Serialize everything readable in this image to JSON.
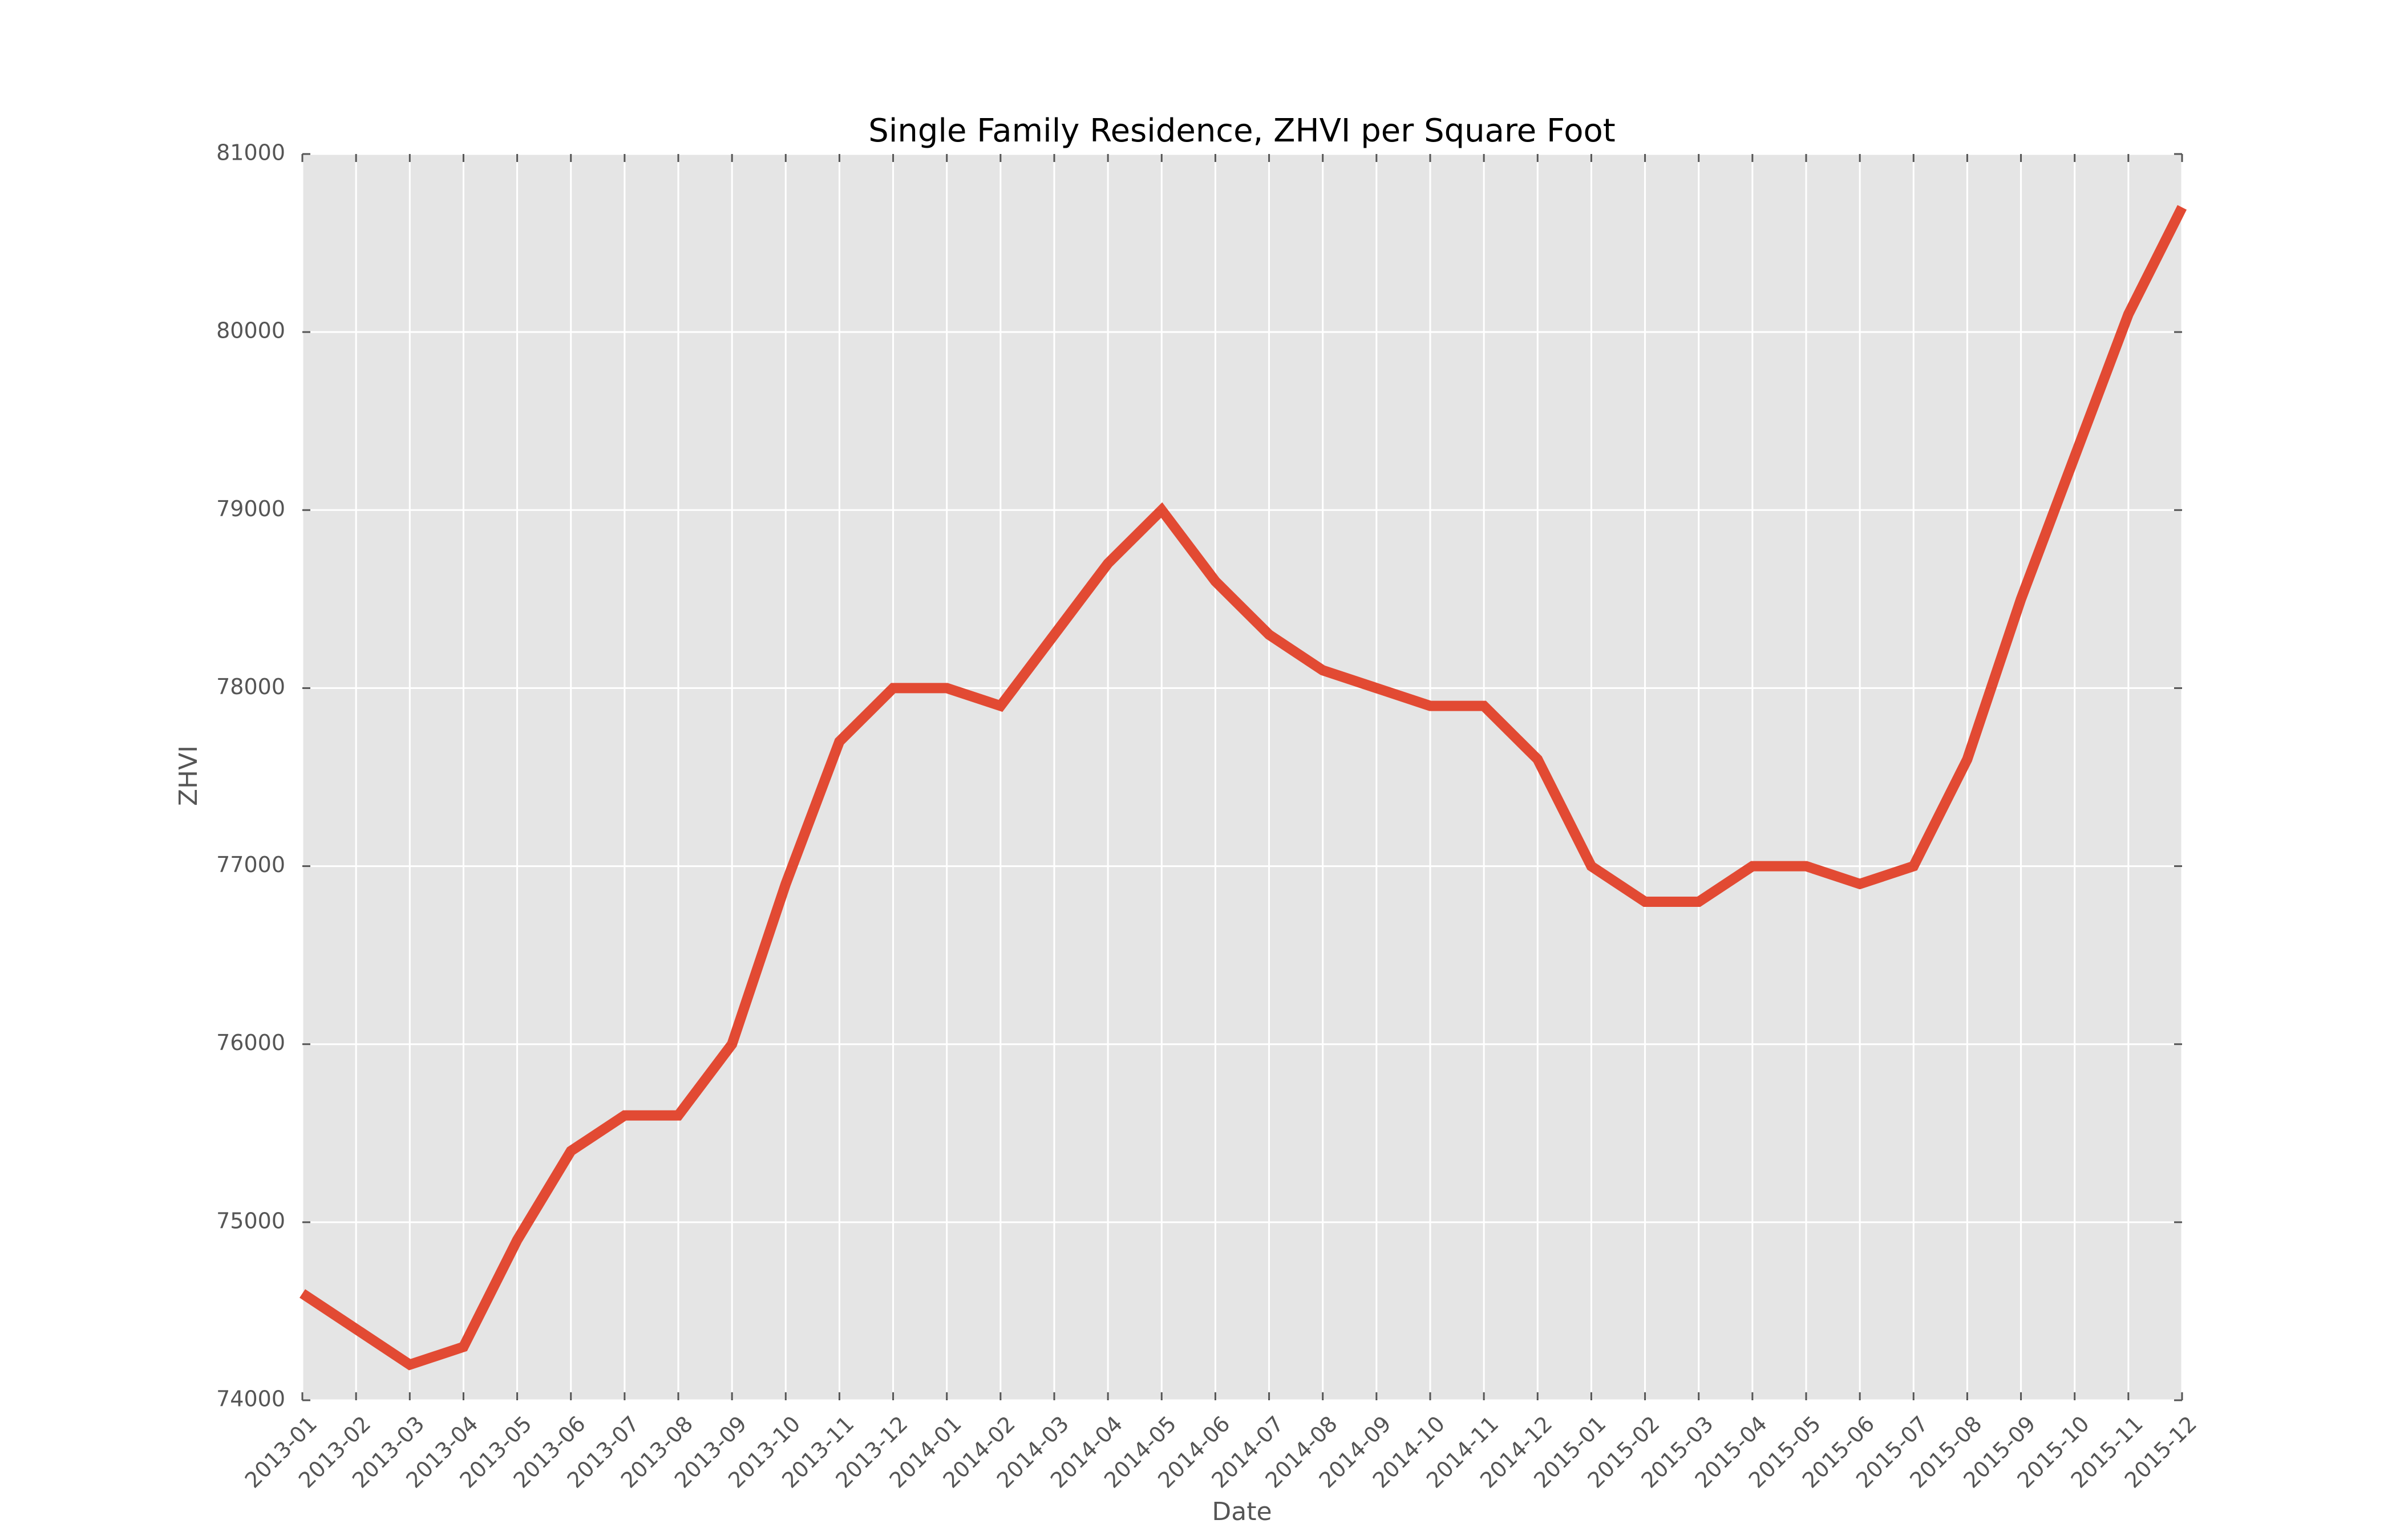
{
  "chart_data": {
    "type": "line",
    "title": "Single Family Residence, ZHVI per Square Foot",
    "xlabel": "Date",
    "ylabel": "ZHVI",
    "x": [
      "2013-01",
      "2013-02",
      "2013-03",
      "2013-04",
      "2013-05",
      "2013-06",
      "2013-07",
      "2013-08",
      "2013-09",
      "2013-10",
      "2013-11",
      "2013-12",
      "2014-01",
      "2014-02",
      "2014-03",
      "2014-04",
      "2014-05",
      "2014-06",
      "2014-07",
      "2014-08",
      "2014-09",
      "2014-10",
      "2014-11",
      "2014-12",
      "2015-01",
      "2015-02",
      "2015-03",
      "2015-04",
      "2015-05",
      "2015-06",
      "2015-07",
      "2015-08",
      "2015-09",
      "2015-10",
      "2015-11",
      "2015-12"
    ],
    "series": [
      {
        "values": [
          74600,
          74400,
          74200,
          74300,
          74900,
          75400,
          75600,
          75600,
          76000,
          76900,
          77700,
          78000,
          78000,
          77900,
          78300,
          78700,
          79000,
          78600,
          78300,
          78100,
          78000,
          77900,
          77900,
          77600,
          77000,
          76800,
          76800,
          77000,
          77000,
          76900,
          77000,
          77600,
          78500,
          79300,
          80100,
          80700
        ],
        "color": "#e24a33"
      }
    ],
    "ylim": [
      74000,
      81000
    ],
    "yticks": [
      "74000",
      "75000",
      "76000",
      "77000",
      "78000",
      "79000",
      "80000",
      "81000"
    ],
    "grid": true,
    "background": "#e5e5e5"
  }
}
